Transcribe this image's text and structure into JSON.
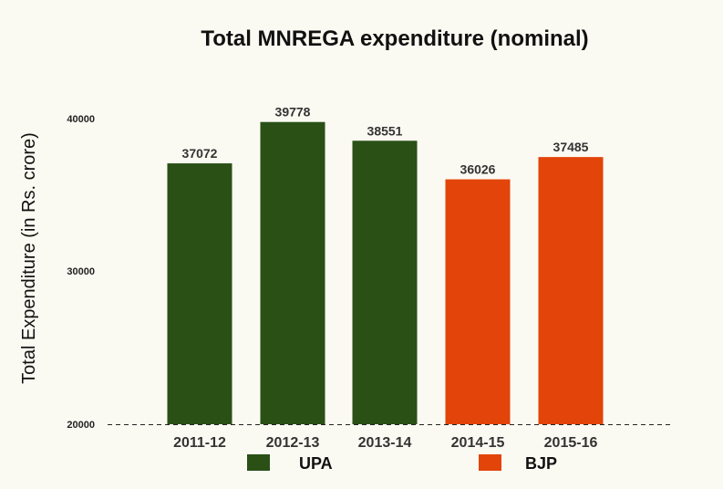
{
  "chart_data": {
    "type": "bar",
    "title": "Total MNREGA expenditure (nominal)",
    "xlabel": "",
    "ylabel": "Total Expenditure (in Rs. crore)",
    "categories": [
      "2011-12",
      "2012-13",
      "2013-14",
      "2014-15",
      "2015-16"
    ],
    "values": [
      37072,
      39778,
      38551,
      36026,
      37485
    ],
    "groups": [
      "UPA",
      "UPA",
      "UPA",
      "BJP",
      "BJP"
    ],
    "ylim": [
      20000,
      40000
    ],
    "yticks": [
      "20000",
      "30000",
      "40000"
    ],
    "grid": false,
    "legend": {
      "placement": "bottom",
      "entries": [
        {
          "name": "UPA",
          "color": "#2a5016"
        },
        {
          "name": "BJP",
          "color": "#e2440a"
        }
      ]
    }
  }
}
